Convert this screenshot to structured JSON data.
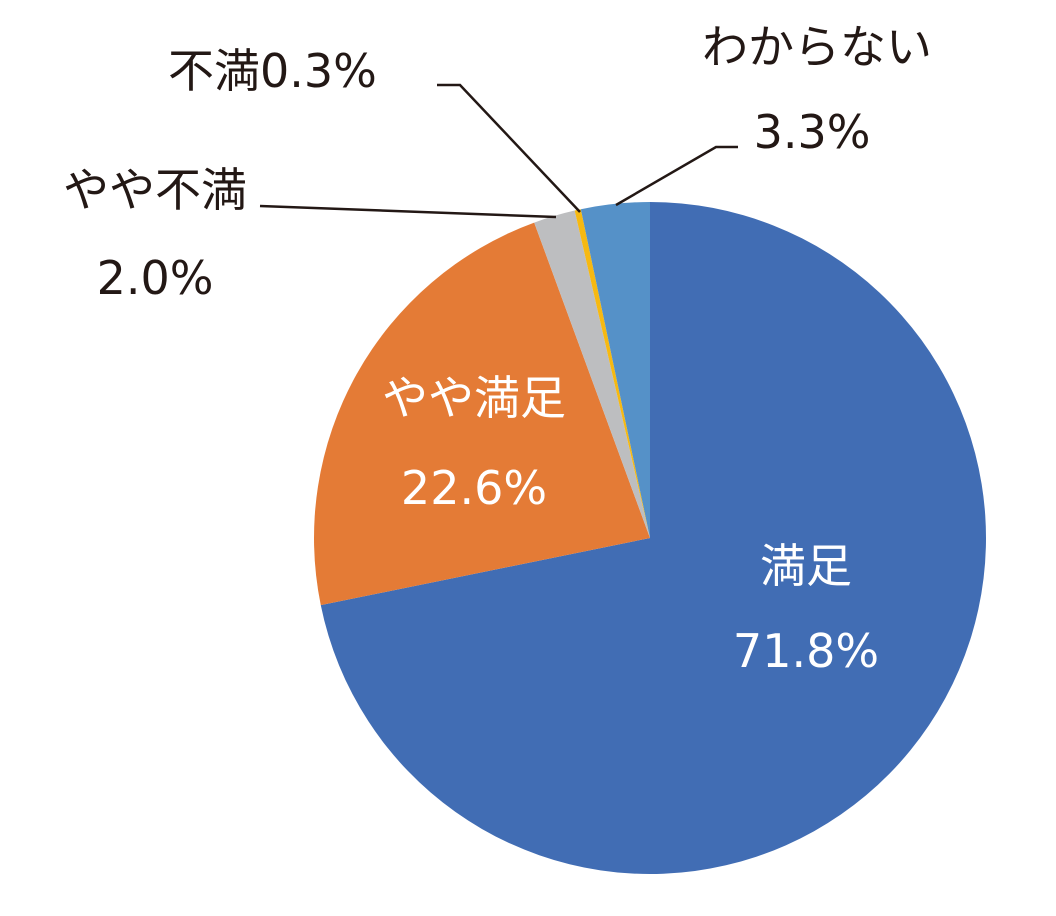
{
  "chart_data": {
    "type": "pie",
    "start_angle_deg": 0,
    "direction": "clockwise",
    "slices": [
      {
        "label": "満足",
        "value": 71.8,
        "value_label": "71.8%",
        "color": "#416DB4",
        "label_color": "#FFFFFF"
      },
      {
        "label": "やや満足",
        "value": 22.6,
        "value_label": "22.6%",
        "color": "#E47B36",
        "label_color": "#FFFFFF"
      },
      {
        "label": "やや不満",
        "value": 2.0,
        "value_label": "2.0%",
        "color": "#BDBEC0",
        "label_color": "#231815"
      },
      {
        "label": "不満",
        "value": 0.3,
        "value_label": "0.3%",
        "color": "#F6B912",
        "label_color": "#231815"
      },
      {
        "label": "わからない",
        "value": 3.3,
        "value_label": "3.3%",
        "color": "#5591C8",
        "label_color": "#231815"
      }
    ]
  }
}
